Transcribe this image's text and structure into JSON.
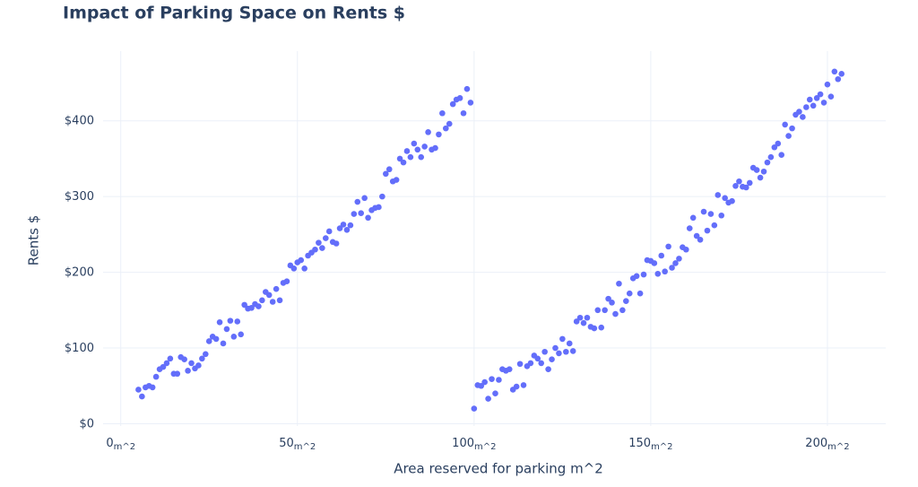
{
  "chart_data": {
    "type": "scatter",
    "title": "Impact of Parking Space on Rents $",
    "x_label": "Area reserved for parking m^2",
    "y_label": "Rents $",
    "x_tick_suffix": "m^2",
    "y_tick_prefix": "$",
    "xlim": [
      -5,
      216.5
    ],
    "ylim": [
      -3,
      492
    ],
    "xticks": [
      0,
      50,
      100,
      150,
      200
    ],
    "yticks": [
      0,
      100,
      200,
      300,
      400
    ],
    "grid": true,
    "series": [
      {
        "color": "#636efa",
        "x": [
          5,
          6,
          7,
          8,
          9,
          10,
          11,
          12,
          13,
          14,
          15,
          16,
          17,
          18,
          19,
          20,
          21,
          22,
          23,
          24,
          25,
          26,
          27,
          28,
          29,
          30,
          31,
          32,
          33,
          34,
          35,
          36,
          37,
          38,
          39,
          40,
          41,
          42,
          43,
          44,
          45,
          46,
          47,
          48,
          49,
          50,
          51,
          52,
          53,
          54,
          55,
          56,
          57,
          58,
          59,
          60,
          61,
          62,
          63,
          64,
          65,
          66,
          67,
          68,
          69,
          70,
          71,
          72,
          73,
          74,
          75,
          76,
          77,
          78,
          79,
          80,
          81,
          82,
          83,
          84,
          85,
          86,
          87,
          88,
          89,
          90,
          91,
          92,
          93,
          94,
          95,
          96,
          97,
          98,
          99,
          100,
          101,
          102,
          103,
          104,
          105,
          106,
          107,
          108,
          109,
          110,
          111,
          112,
          113,
          114,
          115,
          116,
          117,
          118,
          119,
          120,
          121,
          122,
          123,
          124,
          125,
          126,
          127,
          128,
          129,
          130,
          131,
          132,
          133,
          134,
          135,
          136,
          137,
          138,
          139,
          140,
          141,
          142,
          143,
          144,
          145,
          146,
          147,
          148,
          149,
          150,
          151,
          152,
          153,
          154,
          155,
          156,
          157,
          158,
          159,
          160,
          161,
          162,
          163,
          164,
          165,
          166,
          167,
          168,
          169,
          170,
          171,
          172,
          173,
          174,
          175,
          176,
          177,
          178,
          179,
          180,
          181,
          182,
          183,
          184,
          185,
          186,
          187,
          188,
          189,
          190,
          191,
          192,
          193,
          194,
          195,
          196,
          197,
          198,
          199,
          200,
          201,
          202,
          203,
          204
        ],
        "values": [
          45,
          36,
          48,
          50,
          48,
          62,
          72,
          75,
          80,
          86,
          66,
          66,
          88,
          85,
          70,
          80,
          73,
          77,
          86,
          92,
          109,
          115,
          112,
          134,
          106,
          125,
          136,
          115,
          135,
          118,
          157,
          152,
          153,
          158,
          155,
          163,
          174,
          170,
          161,
          178,
          163,
          186,
          188,
          209,
          205,
          213,
          216,
          205,
          222,
          226,
          230,
          239,
          232,
          245,
          254,
          240,
          238,
          258,
          263,
          256,
          262,
          277,
          293,
          278,
          298,
          272,
          282,
          285,
          286,
          300,
          330,
          336,
          320,
          322,
          350,
          345,
          360,
          352,
          370,
          362,
          352,
          366,
          385,
          362,
          364,
          382,
          410,
          390,
          396,
          422,
          428,
          430,
          410,
          442,
          424,
          20,
          51,
          50,
          55,
          33,
          59,
          40,
          58,
          72,
          70,
          72,
          45,
          49,
          79,
          51,
          76,
          80,
          90,
          86,
          80,
          95,
          72,
          85,
          100,
          93,
          112,
          95,
          106,
          96,
          135,
          140,
          133,
          140,
          128,
          126,
          150,
          127,
          150,
          165,
          160,
          145,
          185,
          150,
          162,
          172,
          192,
          195,
          172,
          197,
          216,
          215,
          212,
          198,
          222,
          201,
          234,
          206,
          212,
          218,
          233,
          230,
          258,
          272,
          248,
          243,
          280,
          255,
          277,
          262,
          302,
          275,
          298,
          292,
          294,
          314,
          320,
          313,
          312,
          318,
          338,
          335,
          325,
          333,
          345,
          352,
          365,
          370,
          355,
          395,
          380,
          390,
          408,
          412,
          405,
          418,
          428,
          420,
          430,
          435,
          424,
          448,
          432,
          465,
          455,
          462
        ]
      }
    ]
  }
}
